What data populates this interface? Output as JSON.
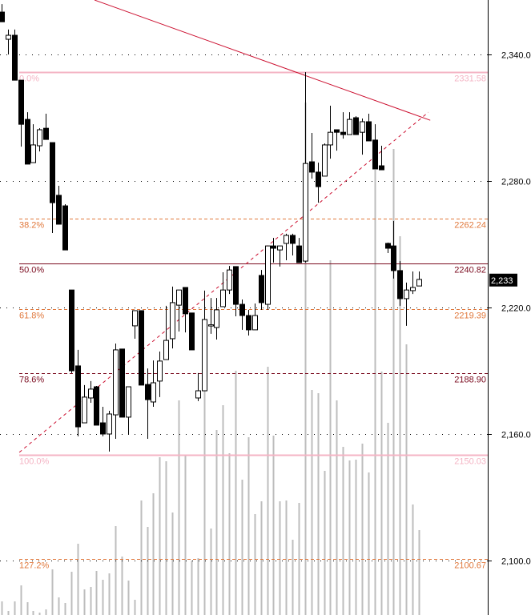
{
  "chart_data": {
    "type": "candlestick",
    "title": "",
    "xlabel": "",
    "ylabel": "",
    "ylim": [
      2081,
      2366
    ],
    "grid": true,
    "y_ticks": [
      {
        "value": 2340,
        "label": "2,340.0"
      },
      {
        "value": 2280,
        "label": "2,280.0"
      },
      {
        "value": 2220,
        "label": "2,220.0"
      },
      {
        "value": 2160,
        "label": "2,160.0"
      },
      {
        "value": 2100,
        "label": "2,100.0"
      }
    ],
    "last_price": {
      "value": 2233,
      "label": "2,233"
    },
    "candles_ohlc": [
      [
        2360.1,
        2363.9,
        2355.5,
        2355.5
      ],
      [
        2347.2,
        2351.8,
        2340.0,
        2349.1
      ],
      [
        2349.1,
        2351.8,
        2327.8,
        2327.8
      ],
      [
        2327.8,
        2327.8,
        2296.3,
        2306.9
      ],
      [
        2309.2,
        2312.6,
        2288.0,
        2288.0
      ],
      [
        2288.7,
        2306.9,
        2288.7,
        2297.1
      ],
      [
        2296.7,
        2305.0,
        2294.0,
        2304.3
      ],
      [
        2305.0,
        2311.9,
        2299.7,
        2299.7
      ],
      [
        2298.2,
        2298.2,
        2255.3,
        2269.7
      ],
      [
        2273.2,
        2277.7,
        2259.5,
        2259.5
      ],
      [
        2268.2,
        2269.0,
        2247.3,
        2247.3
      ],
      [
        2228.3,
        2228.3,
        2188.9,
        2190.0
      ],
      [
        2192.3,
        2199.9,
        2158.9,
        2163.4
      ],
      [
        2165.3,
        2183.2,
        2165.3,
        2177.5
      ],
      [
        2177.1,
        2185.1,
        2174.8,
        2181.3
      ],
      [
        2182.4,
        2182.8,
        2164.2,
        2164.2
      ],
      [
        2165.3,
        2172.9,
        2158.9,
        2160.0
      ],
      [
        2160.0,
        2171.0,
        2151.7,
        2169.5
      ],
      [
        2169.1,
        2202.9,
        2157.7,
        2199.9
      ],
      [
        2200.3,
        2200.3,
        2168.0,
        2168.0
      ],
      [
        2168.0,
        2182.4,
        2160.0,
        2182.4
      ],
      [
        2211.3,
        2218.5,
        2205.2,
        2218.5
      ],
      [
        2218.5,
        2218.5,
        2183.2,
        2183.2
      ],
      [
        2183.5,
        2191.1,
        2157.7,
        2176.3
      ],
      [
        2175.2,
        2194.9,
        2172.9,
        2184.3
      ],
      [
        2185.1,
        2199.1,
        2177.5,
        2194.6
      ],
      [
        2195.3,
        2220.8,
        2195.3,
        2204.4
      ],
      [
        2205.2,
        2229.9,
        2200.6,
        2222.3
      ],
      [
        2221.1,
        2228.3,
        2208.6,
        2228.3
      ],
      [
        2229.5,
        2229.5,
        2208.2,
        2217.0
      ],
      [
        2217.4,
        2217.4,
        2199.9,
        2199.9
      ],
      [
        2177.1,
        2188.9,
        2175.6,
        2180.5
      ],
      [
        2180.5,
        2228.0,
        2180.5,
        2214.3
      ],
      [
        2211.3,
        2224.5,
        2207.5,
        2211.8
      ],
      [
        2210.5,
        2224.5,
        2204.8,
        2218.9
      ],
      [
        2220.4,
        2236.7,
        2220.4,
        2228.3
      ],
      [
        2228.3,
        2239.7,
        2226.4,
        2237.8
      ],
      [
        2239.4,
        2239.4,
        2215.8,
        2221.5
      ],
      [
        2221.5,
        2223.8,
        2209.4,
        2216.2
      ],
      [
        2216.2,
        2218.9,
        2206.7,
        2209.4
      ],
      [
        2209.4,
        2221.9,
        2209.4,
        2216.2
      ],
      [
        2235.2,
        2237.8,
        2218.9,
        2222.3
      ],
      [
        2221.5,
        2249.2,
        2218.9,
        2249.2
      ],
      [
        2249.2,
        2253.0,
        2241.3,
        2248.1
      ],
      [
        2247.3,
        2249.2,
        2239.4,
        2249.2
      ],
      [
        2250.4,
        2255.0,
        2242.4,
        2254.2
      ],
      [
        2254.2,
        2255.0,
        2244.7,
        2250.4
      ],
      [
        2249.2,
        2253.0,
        2241.3,
        2241.3
      ],
      [
        2242.0,
        2331.6,
        2241.3,
        2288.3
      ],
      [
        2289.1,
        2302.8,
        2281.1,
        2284.2
      ],
      [
        2284.2,
        2288.7,
        2269.7,
        2277.3
      ],
      [
        2282.3,
        2297.8,
        2282.3,
        2297.1
      ],
      [
        2297.1,
        2315.7,
        2290.6,
        2303.1
      ],
      [
        2304.3,
        2304.3,
        2294.4,
        2303.1
      ],
      [
        2303.1,
        2312.6,
        2300.1,
        2302.0
      ],
      [
        2302.0,
        2312.6,
        2302.0,
        2309.2
      ],
      [
        2310.0,
        2310.7,
        2302.0,
        2302.0
      ],
      [
        2303.1,
        2309.6,
        2292.5,
        2308.1
      ],
      [
        2308.1,
        2311.9,
        2299.0,
        2299.0
      ],
      [
        2299.4,
        2306.9,
        2285.7,
        2285.7
      ],
      [
        2287.2,
        2296.7,
        2285.3,
        2285.3
      ],
      [
        2250.4,
        2250.8,
        2245.8,
        2248.1
      ],
      [
        2249.2,
        2261.0,
        2233.7,
        2237.5
      ],
      [
        2237.5,
        2242.0,
        2220.8,
        2224.2
      ],
      [
        2224.2,
        2231.8,
        2211.3,
        2228.3
      ],
      [
        2228.0,
        2237.1,
        2226.4,
        2229.5
      ],
      [
        2230.2,
        2237.1,
        2230.2,
        2233.3
      ]
    ],
    "volume_relative": [
      17,
      5,
      17,
      37,
      16,
      5,
      3,
      7,
      57,
      22,
      15,
      54,
      89,
      32,
      35,
      55,
      44,
      52,
      111,
      73,
      43,
      19,
      143,
      110,
      152,
      197,
      192,
      128,
      268,
      200,
      68,
      71,
      281,
      108,
      231,
      262,
      202,
      305,
      169,
      222,
      126,
      142,
      310,
      224,
      142,
      143,
      94,
      140,
      640,
      281,
      277,
      180,
      443,
      268,
      210,
      193,
      194,
      214,
      178,
      556,
      304,
      240,
      582,
      473,
      338,
      138,
      106
    ],
    "fibonacci_levels": [
      {
        "ratio": "0.0%",
        "value": 2331.58,
        "label": "2331.58",
        "color": "#f4b4c4",
        "style": "solid"
      },
      {
        "ratio": "38.2%",
        "value": 2262.24,
        "label": "2262.24",
        "color": "#e0783c",
        "style": "dashed"
      },
      {
        "ratio": "50.0%",
        "value": 2240.82,
        "label": "2240.82",
        "color": "#7a0a1e",
        "style": "solid"
      },
      {
        "ratio": "61.8%",
        "value": 2219.39,
        "label": "2219.39",
        "color": "#e0783c",
        "style": "dashed"
      },
      {
        "ratio": "78.6%",
        "value": 2188.9,
        "label": "2188.90",
        "color": "#7a0a1e",
        "style": "dashed"
      },
      {
        "ratio": "100.0%",
        "value": 2150.03,
        "label": "2150.03",
        "color": "#f4b4c4",
        "style": "solid"
      },
      {
        "ratio": "127.2%",
        "value": 2100.67,
        "label": "2100.67",
        "color": "#e0783c",
        "style": "dashed"
      }
    ],
    "trendlines": [
      {
        "name": "resistance-trendline",
        "from": [
          14.7,
          2365.8
        ],
        "to": [
          67.8,
          2308.8
        ],
        "color": "#cc1030",
        "style": "solid"
      },
      {
        "name": "fib-trendline",
        "from": [
          2.8,
          2151.3
        ],
        "to": [
          67.5,
          2312.6
        ],
        "color": "#cc1030",
        "style": "dashed"
      }
    ],
    "colors": {
      "up_fill": "#ffffff",
      "down_fill": "#000000",
      "volume": "#bdbdbd",
      "grid": "#000000",
      "axis": "#000000"
    }
  }
}
